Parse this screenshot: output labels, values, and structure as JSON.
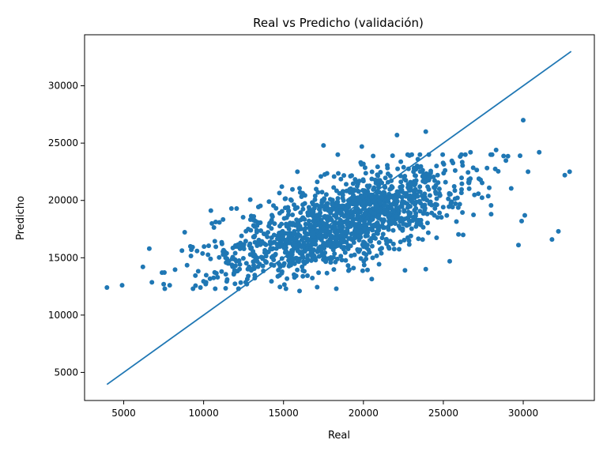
{
  "chart_data": {
    "type": "scatter",
    "title": "Real vs Predicho (validación)",
    "xlabel": "Real",
    "ylabel": "Predicho",
    "xlim": [
      2550,
      34450
    ],
    "ylim": [
      2550,
      34450
    ],
    "xticks": [
      5000,
      10000,
      15000,
      20000,
      25000,
      30000
    ],
    "yticks": [
      5000,
      10000,
      15000,
      20000,
      25000,
      30000
    ],
    "grid": false,
    "legend": "none",
    "point_color": "#1f77b4",
    "line_color": "#1f77b4",
    "reference_line": {
      "x": [
        3950,
        33000
      ],
      "y": [
        3950,
        33000
      ]
    },
    "outliers": [
      {
        "x": 3950,
        "y": 12400
      },
      {
        "x": 4900,
        "y": 12600
      },
      {
        "x": 30000,
        "y": 27000
      },
      {
        "x": 23900,
        "y": 26000
      },
      {
        "x": 22100,
        "y": 25700
      },
      {
        "x": 17500,
        "y": 24800
      },
      {
        "x": 19900,
        "y": 24700
      },
      {
        "x": 32900,
        "y": 22500
      },
      {
        "x": 32600,
        "y": 22200
      },
      {
        "x": 31800,
        "y": 16600
      },
      {
        "x": 32200,
        "y": 17300
      },
      {
        "x": 29700,
        "y": 16100
      },
      {
        "x": 31000,
        "y": 24200
      },
      {
        "x": 29800,
        "y": 23900
      },
      {
        "x": 28300,
        "y": 24400
      },
      {
        "x": 30300,
        "y": 22500
      },
      {
        "x": 30100,
        "y": 18700
      },
      {
        "x": 29900,
        "y": 18200
      },
      {
        "x": 16000,
        "y": 12100
      },
      {
        "x": 18300,
        "y": 12300
      },
      {
        "x": 23900,
        "y": 14000
      },
      {
        "x": 25400,
        "y": 14700
      },
      {
        "x": 7500,
        "y": 12700
      },
      {
        "x": 6600,
        "y": 15800
      },
      {
        "x": 9800,
        "y": 12400
      },
      {
        "x": 6200,
        "y": 14200
      },
      {
        "x": 26700,
        "y": 24200
      },
      {
        "x": 22600,
        "y": 13900
      }
    ],
    "cluster": {
      "n": 1500,
      "x_mean": 18500,
      "x_sd": 4200,
      "slope": 0.42,
      "y_at_mean": 18000,
      "y_noise_sd": 1900,
      "seed": 7
    }
  }
}
